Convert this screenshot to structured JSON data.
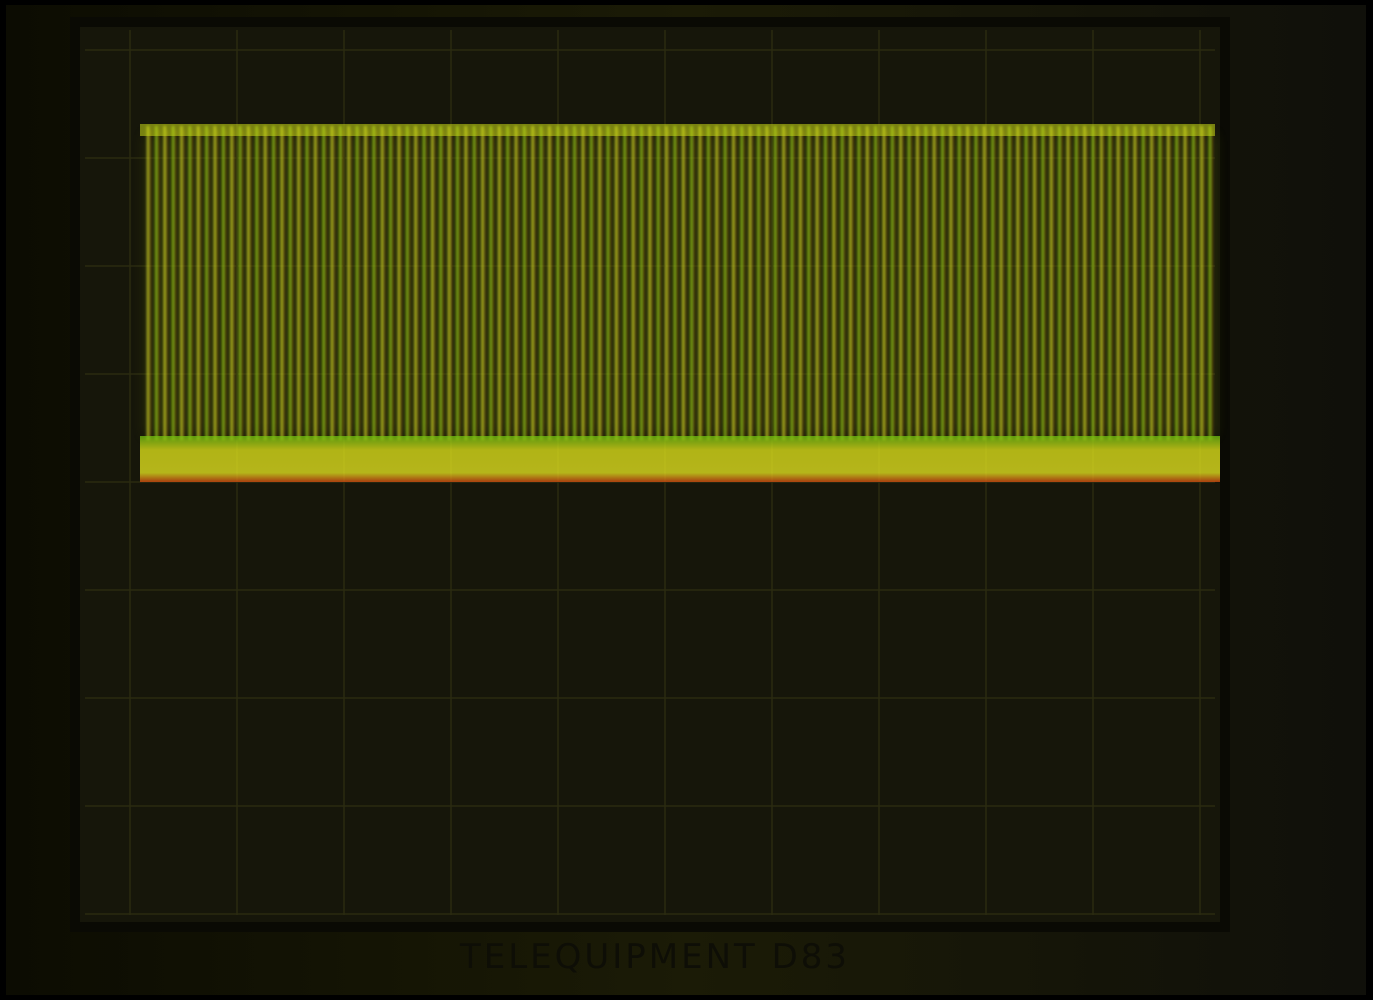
{
  "label": "TELEQUIPMENT D83"
}
